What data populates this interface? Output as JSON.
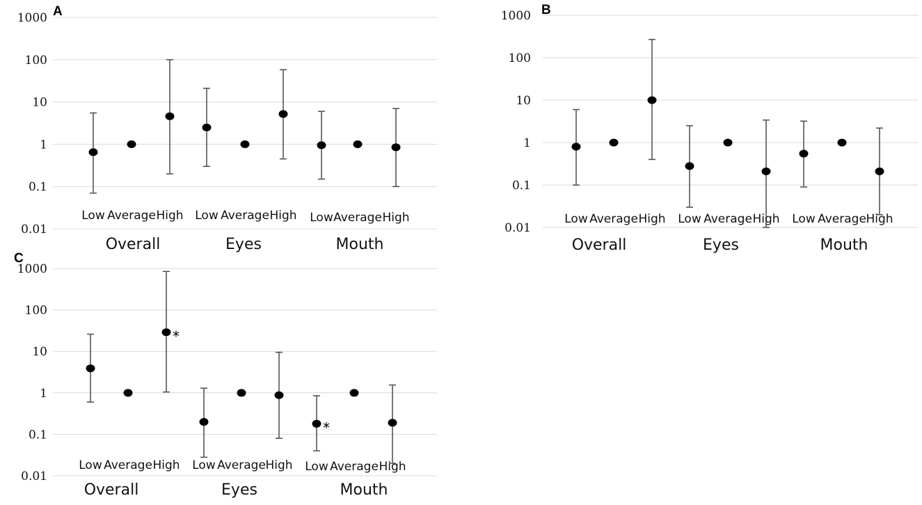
{
  "colors": {
    "point": "#000000",
    "errorbar": "#555555",
    "grid": "#d9d9d9"
  },
  "chart_data": [
    {
      "panel": "A",
      "type": "scatter",
      "yscale": "log",
      "ylim": [
        0.01,
        1000
      ],
      "yticks": [
        "1000",
        "100",
        "10",
        "1",
        "0.1",
        "0.01"
      ],
      "groups": [
        "Overall",
        "Eyes",
        "Mouth"
      ],
      "categories": [
        "Low",
        "Average",
        "High",
        "Low",
        "Average",
        "High",
        "Low",
        "Average",
        "High"
      ],
      "points": [
        {
          "group": "Overall",
          "level": "Low",
          "value": 0.65,
          "lower": 0.07,
          "upper": 5.5,
          "sig": ""
        },
        {
          "group": "Overall",
          "level": "Average",
          "value": 1.0,
          "lower": null,
          "upper": null,
          "sig": ""
        },
        {
          "group": "Overall",
          "level": "High",
          "value": 4.6,
          "lower": 0.2,
          "upper": 100,
          "sig": ""
        },
        {
          "group": "Eyes",
          "level": "Low",
          "value": 2.5,
          "lower": 0.3,
          "upper": 21,
          "sig": ""
        },
        {
          "group": "Eyes",
          "level": "Average",
          "value": 1.0,
          "lower": null,
          "upper": null,
          "sig": ""
        },
        {
          "group": "Eyes",
          "level": "High",
          "value": 5.2,
          "lower": 0.45,
          "upper": 58,
          "sig": ""
        },
        {
          "group": "Mouth",
          "level": "Low",
          "value": 0.95,
          "lower": 0.15,
          "upper": 6.0,
          "sig": ""
        },
        {
          "group": "Mouth",
          "level": "Average",
          "value": 1.0,
          "lower": null,
          "upper": null,
          "sig": ""
        },
        {
          "group": "Mouth",
          "level": "High",
          "value": 0.85,
          "lower": 0.1,
          "upper": 7.0,
          "sig": ""
        }
      ]
    },
    {
      "panel": "B",
      "type": "scatter",
      "yscale": "log",
      "ylim": [
        0.01,
        1000
      ],
      "yticks": [
        "1000",
        "100",
        "10",
        "1",
        "0.1",
        "0.01"
      ],
      "groups": [
        "Overall",
        "Eyes",
        "Mouth"
      ],
      "categories": [
        "Low",
        "Average",
        "High",
        "Low",
        "Average",
        "High",
        "Low",
        "Average",
        "High"
      ],
      "points": [
        {
          "group": "Overall",
          "level": "Low",
          "value": 0.8,
          "lower": 0.1,
          "upper": 6.0,
          "sig": ""
        },
        {
          "group": "Overall",
          "level": "Average",
          "value": 1.0,
          "lower": null,
          "upper": null,
          "sig": ""
        },
        {
          "group": "Overall",
          "level": "High",
          "value": 10,
          "lower": 0.4,
          "upper": 270,
          "sig": ""
        },
        {
          "group": "Eyes",
          "level": "Low",
          "value": 0.28,
          "lower": 0.03,
          "upper": 2.5,
          "sig": ""
        },
        {
          "group": "Eyes",
          "level": "Average",
          "value": 1.0,
          "lower": null,
          "upper": null,
          "sig": ""
        },
        {
          "group": "Eyes",
          "level": "High",
          "value": 0.21,
          "lower": 0.01,
          "upper": 3.4,
          "sig": ""
        },
        {
          "group": "Mouth",
          "level": "Low",
          "value": 0.55,
          "lower": 0.09,
          "upper": 3.2,
          "sig": ""
        },
        {
          "group": "Mouth",
          "level": "Average",
          "value": 1.0,
          "lower": null,
          "upper": null,
          "sig": ""
        },
        {
          "group": "Mouth",
          "level": "High",
          "value": 0.21,
          "lower": 0.02,
          "upper": 2.2,
          "sig": ""
        }
      ]
    },
    {
      "panel": "C",
      "type": "scatter",
      "yscale": "log",
      "ylim": [
        0.01,
        1000
      ],
      "yticks": [
        "1000",
        "100",
        "10",
        "1",
        "0.1",
        "0.01"
      ],
      "groups": [
        "Overall",
        "Eyes",
        "Mouth"
      ],
      "categories": [
        "Low",
        "Average",
        "High",
        "Low",
        "Average",
        "High",
        "Low",
        "Average",
        "High"
      ],
      "points": [
        {
          "group": "Overall",
          "level": "Low",
          "value": 3.9,
          "lower": 0.6,
          "upper": 26,
          "sig": ""
        },
        {
          "group": "Overall",
          "level": "Average",
          "value": 1.0,
          "lower": null,
          "upper": null,
          "sig": ""
        },
        {
          "group": "Overall",
          "level": "High",
          "value": 29,
          "lower": 1.05,
          "upper": 850,
          "sig": "*"
        },
        {
          "group": "Eyes",
          "level": "Low",
          "value": 0.2,
          "lower": 0.028,
          "upper": 1.3,
          "sig": ""
        },
        {
          "group": "Eyes",
          "level": "Average",
          "value": 1.0,
          "lower": null,
          "upper": null,
          "sig": ""
        },
        {
          "group": "Eyes",
          "level": "High",
          "value": 0.88,
          "lower": 0.08,
          "upper": 9.5,
          "sig": ""
        },
        {
          "group": "Mouth",
          "level": "Low",
          "value": 0.18,
          "lower": 0.04,
          "upper": 0.85,
          "sig": "*"
        },
        {
          "group": "Mouth",
          "level": "Average",
          "value": 1.0,
          "lower": null,
          "upper": null,
          "sig": ""
        },
        {
          "group": "Mouth",
          "level": "High",
          "value": 0.19,
          "lower": 0.02,
          "upper": 1.55,
          "sig": ""
        }
      ]
    }
  ]
}
